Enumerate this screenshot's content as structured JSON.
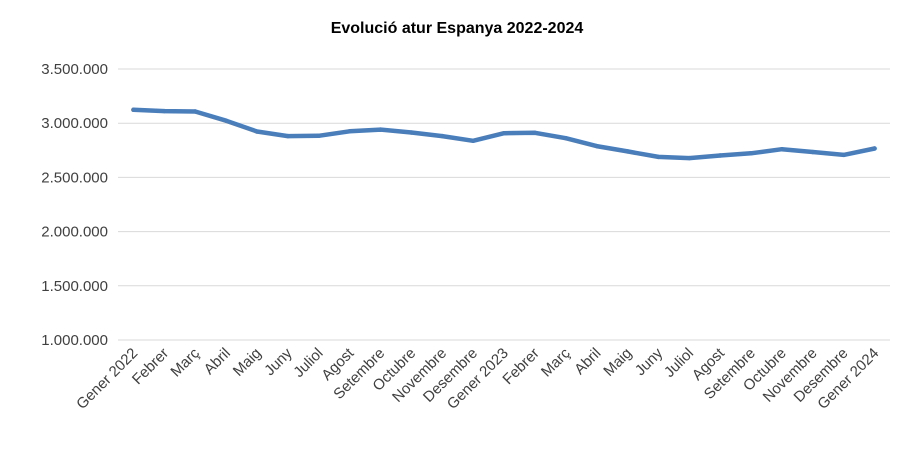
{
  "chart_data": {
    "type": "line",
    "title": "Evolució atur Espanya 2022-2024",
    "xlabel": "",
    "ylabel": "",
    "ylim": [
      1000000,
      3500000
    ],
    "ytick_values": [
      1000000,
      1500000,
      2000000,
      2500000,
      3000000,
      3500000
    ],
    "ytick_labels": [
      "1.000.000",
      "1.500.000",
      "2.000.000",
      "2.500.000",
      "3.000.000",
      "3.500.000"
    ],
    "grid": true,
    "legend": "none",
    "categories": [
      "Gener 2022",
      "Febrer",
      "Març",
      "Abril",
      "Maig",
      "Juny",
      "Juliol",
      "Agost",
      "Setembre",
      "Octubre",
      "Novembre",
      "Desembre",
      "Gener 2023",
      "Febrer",
      "Març",
      "Abril",
      "Maig",
      "Juny",
      "Juliol",
      "Agost",
      "Setembre",
      "Octubre",
      "Novembre",
      "Desembre",
      "Gener 2024"
    ],
    "series": [
      {
        "values": [
          3124000,
          3112000,
          3108000,
          3023000,
          2923000,
          2881000,
          2884000,
          2925000,
          2941000,
          2914000,
          2881000,
          2838000,
          2908000,
          2911000,
          2862000,
          2789000,
          2740000,
          2689000,
          2678000,
          2702000,
          2722000,
          2760000,
          2734000,
          2708000,
          2767000
        ],
        "color": "#4a7ebb"
      }
    ]
  }
}
